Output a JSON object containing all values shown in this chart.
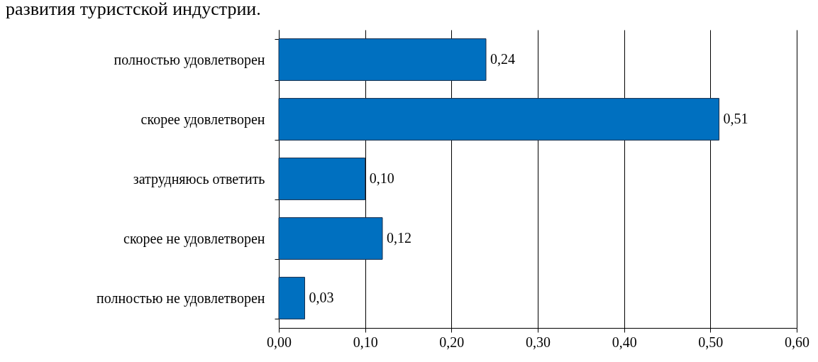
{
  "chart_data": {
    "type": "bar",
    "orientation": "horizontal",
    "title": "развития туристской индустрии.",
    "categories": [
      "полностью удовлетворен",
      "скорее удовлетворен",
      "затрудняюсь ответить",
      "скорее не удовлетворен",
      "полностью не удовлетворен"
    ],
    "values": [
      0.24,
      0.51,
      0.1,
      0.12,
      0.03
    ],
    "value_labels": [
      "0,24",
      "0,51",
      "0,10",
      "0,12",
      "0,03"
    ],
    "color": "#0070c0",
    "xlim": [
      0,
      0.6
    ],
    "xticks": [
      {
        "value": 0,
        "label": "0,00"
      },
      {
        "value": 0.1,
        "label": "0,10"
      },
      {
        "value": 0.2,
        "label": "0,20"
      },
      {
        "value": 0.3,
        "label": "0,30"
      },
      {
        "value": 0.4,
        "label": "0,40"
      },
      {
        "value": 0.5,
        "label": "0,50"
      },
      {
        "value": 0.6,
        "label": "0,60"
      }
    ],
    "grid": "x"
  }
}
